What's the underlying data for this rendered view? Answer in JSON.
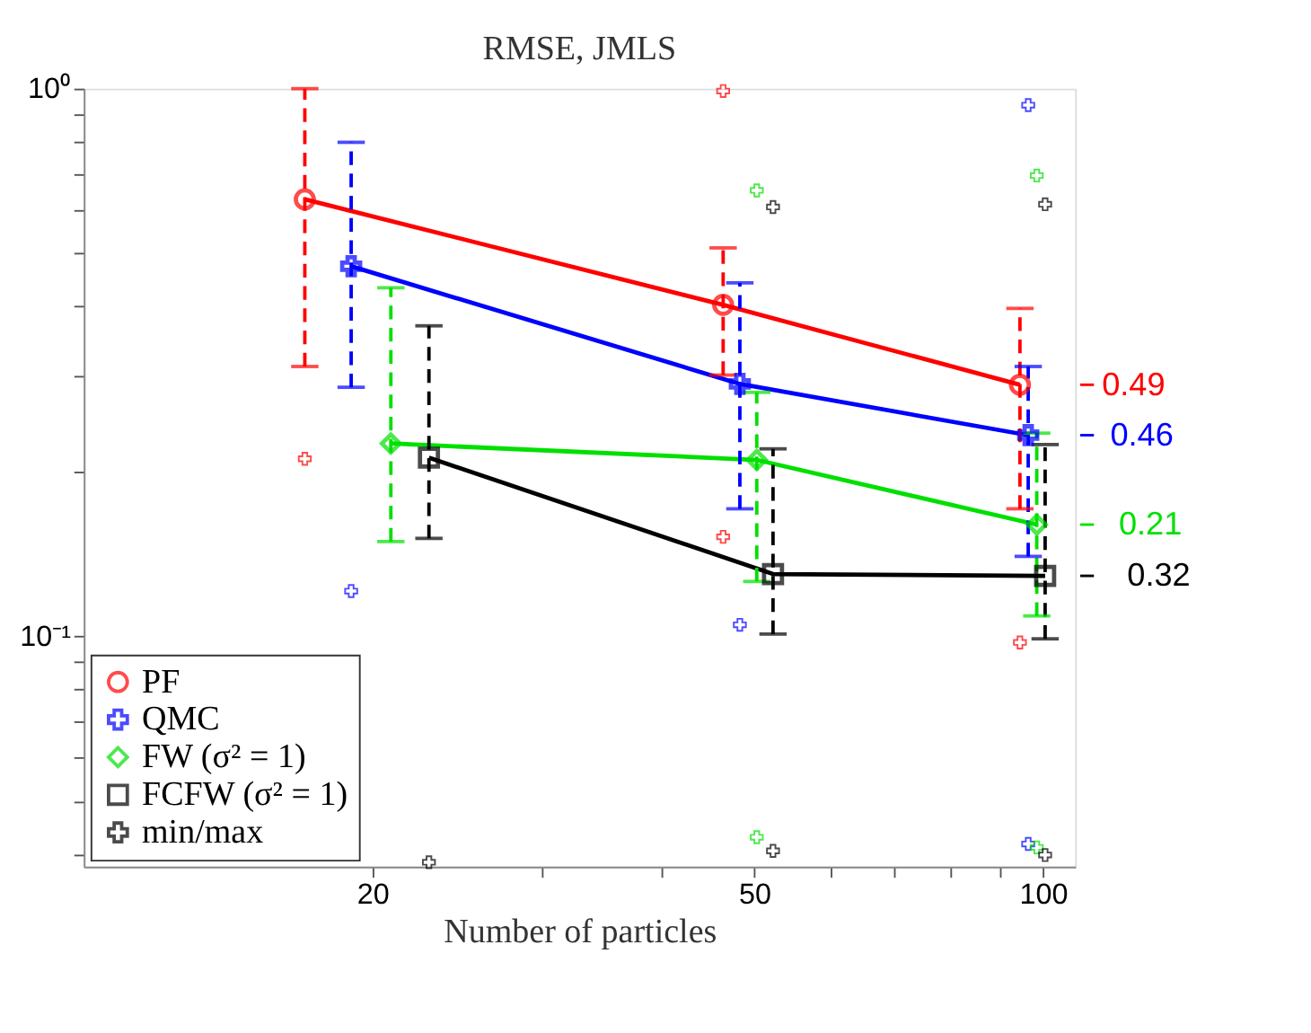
{
  "chart_data": {
    "type": "line",
    "title": "RMSE, JMLS",
    "xlabel": "Number of particles",
    "log": "xy",
    "grid": false,
    "legend": "bottom left",
    "line_style": "solid",
    "xlim": [
      10,
      108
    ],
    "ylim": [
      0.038,
      1
    ],
    "xticks": [
      20,
      {
        "value": 30,
        "label": null
      },
      {
        "value": 40,
        "label": null
      },
      50,
      {
        "value": 60,
        "label": null
      },
      {
        "value": 70,
        "label": null
      },
      {
        "value": 80,
        "label": null
      },
      {
        "value": 90,
        "label": null
      },
      100
    ],
    "yticks": [
      {
        "value": 0.04,
        "label": null
      },
      {
        "value": 0.05,
        "label": null
      },
      {
        "value": 0.06,
        "label": null
      },
      {
        "value": 0.07,
        "label": null
      },
      {
        "value": 0.08,
        "label": null
      },
      {
        "value": 0.09,
        "label": null
      },
      {
        "value": 0.1,
        "label": "10⁻¹"
      },
      {
        "value": 0.2,
        "label": null
      },
      {
        "value": 0.3,
        "label": null
      },
      {
        "value": 0.4,
        "label": null
      },
      {
        "value": 0.5,
        "label": null
      },
      {
        "value": 0.6,
        "label": null
      },
      {
        "value": 0.7,
        "label": null
      },
      {
        "value": 0.8,
        "label": null
      },
      {
        "value": 0.9,
        "label": null
      },
      {
        "value": 1,
        "label": "10⁰"
      }
    ],
    "series": [
      {
        "name": "PF",
        "color": "#ff0000",
        "marker": "circle",
        "x": [
          17,
          46.4,
          94.6
        ],
        "values": [
          0.628,
          0.403,
          0.288
        ],
        "errors": [
          [
            0.311,
            1.0
          ],
          [
            0.3,
            0.512
          ],
          [
            0.171,
            0.397
          ]
        ]
      },
      {
        "name": "QMC",
        "color": "#0000ff",
        "marker": "cross",
        "x": [
          19,
          48.3,
          96.5
        ],
        "values": [
          0.474,
          0.289,
          0.233
        ],
        "errors": [
          [
            0.285,
            0.798
          ],
          [
            0.171,
            0.442
          ],
          [
            0.14,
            0.311
          ]
        ]
      },
      {
        "name": "FW (σ² = 1)",
        "color": "#00e000",
        "marker": "diamond",
        "x": [
          20.9,
          50.3,
          98.5
        ],
        "values": [
          0.225,
          0.21,
          0.16
        ],
        "errors": [
          [
            0.149,
            0.433
          ],
          [
            0.126,
            0.279
          ],
          [
            0.109,
            0.235
          ]
        ]
      },
      {
        "name": "FCFW (σ² = 1)",
        "color": "#000000",
        "marker": "square",
        "x": [
          22.9,
          52.3,
          100.5
        ],
        "values": [
          0.212,
          0.13,
          0.129
        ],
        "errors": [
          [
            0.151,
            0.369
          ],
          [
            0.101,
            0.22
          ],
          [
            0.099,
            0.224
          ]
        ]
      },
      {
        "name": "min/max",
        "type": "scatter",
        "marker": "cross",
        "color": "#000000",
        "x": [
          17,
          46.4,
          46.4,
          94.6,
          19,
          48.3,
          96.5,
          96.5,
          50.3,
          50.3,
          98.5,
          98.5,
          22.9,
          52.3,
          52.3,
          100.5,
          100.5
        ],
        "values": [
          0.211,
          0.99,
          0.152,
          0.0975,
          0.121,
          0.105,
          0.933,
          0.0418,
          0.652,
          0.043,
          0.694,
          0.0412,
          0.0387,
          0.608,
          0.0406,
          0.615,
          0.0399
        ],
        "colors": [
          "#ff0000",
          "#ff0000",
          "#ff0000",
          "#ff0000",
          "#0000ff",
          "#0000ff",
          "#0000ff",
          "#0000ff",
          "#00e000",
          "#00e000",
          "#00e000",
          "#00e000",
          "#000000",
          "#000000",
          "#000000",
          "#000000",
          "#000000"
        ]
      }
    ],
    "annotations": [
      {
        "text": "0.49",
        "x": 94.6,
        "y": 0.288
      },
      {
        "text": "0.46",
        "x": 96.5,
        "y": 0.233
      },
      {
        "text": "0.21",
        "x": 98.5,
        "y": 0.16
      },
      {
        "text": "0.32",
        "x": 100.5,
        "y": 0.129
      }
    ]
  }
}
